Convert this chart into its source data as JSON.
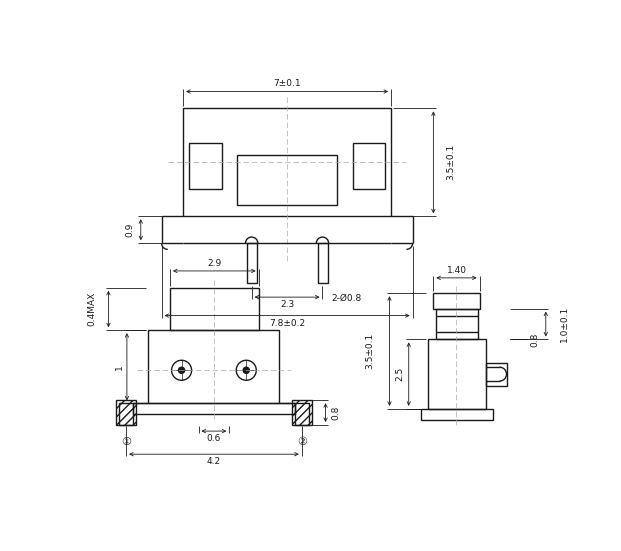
{
  "bg_color": "#ffffff",
  "line_color": "#1a1a1a",
  "dim_color": "#1a1a1a",
  "center_line_color": "#aaaaaa",
  "font_size": 6.5,
  "fig_width": 6.21,
  "fig_height": 5.51
}
